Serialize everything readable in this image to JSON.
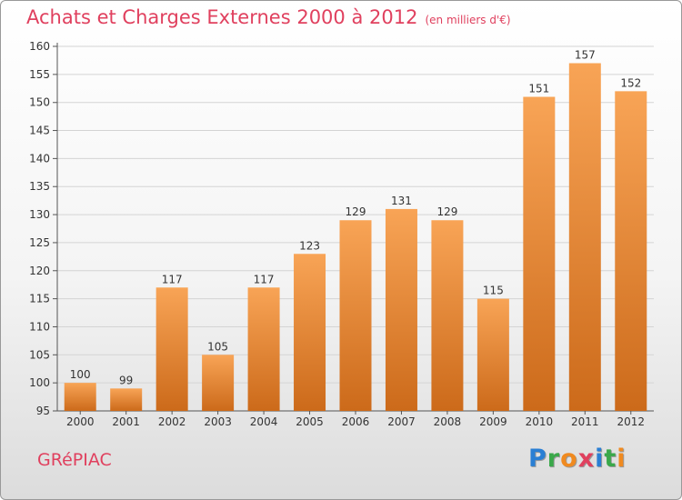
{
  "header": {
    "title": "Achats et Charges Externes 2000 à 2012",
    "subtitle": "(en milliers d'€)"
  },
  "footer": {
    "town": "GRéPIAC",
    "logo_letters": [
      {
        "char": "P",
        "color": "#2a7fd4"
      },
      {
        "char": "r",
        "color": "#3aa84a"
      },
      {
        "char": "o",
        "color": "#f08a20"
      },
      {
        "char": "x",
        "color": "#e0405e"
      },
      {
        "char": "i",
        "color": "#2a7fd4"
      },
      {
        "char": "t",
        "color": "#3aa84a"
      },
      {
        "char": "i",
        "color": "#f08a20"
      }
    ]
  },
  "colors": {
    "bar_top": "#f8a456",
    "bar_bottom": "#cc6a1a",
    "accent": "#e0405e"
  },
  "chart_data": {
    "type": "bar",
    "title": "Achats et Charges Externes 2000 à 2012",
    "subtitle": "(en milliers d'€)",
    "categories": [
      "2000",
      "2001",
      "2002",
      "2003",
      "2004",
      "2005",
      "2006",
      "2007",
      "2008",
      "2009",
      "2010",
      "2011",
      "2012"
    ],
    "values": [
      100,
      99,
      117,
      105,
      117,
      123,
      129,
      131,
      129,
      115,
      151,
      157,
      152
    ],
    "ylim": [
      95,
      160
    ],
    "yticks": [
      95,
      100,
      105,
      110,
      115,
      120,
      125,
      130,
      135,
      140,
      145,
      150,
      155,
      160
    ],
    "grid": true,
    "xlabel": "",
    "ylabel": ""
  }
}
